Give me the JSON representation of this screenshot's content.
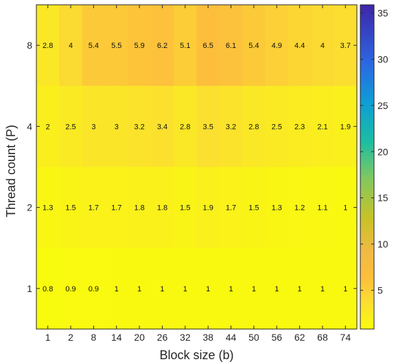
{
  "chart_data": {
    "type": "heatmap",
    "title": "",
    "xlabel": "Block size (b)",
    "ylabel": "Thread count (P)",
    "x_categories": [
      "1",
      "2",
      "8",
      "14",
      "20",
      "26",
      "32",
      "38",
      "44",
      "50",
      "56",
      "62",
      "68",
      "74"
    ],
    "y_categories": [
      "8",
      "4",
      "2",
      "1"
    ],
    "values": [
      [
        2.8,
        4,
        5.4,
        5.5,
        5.9,
        6.2,
        5.1,
        6.5,
        6.1,
        5.4,
        4.9,
        4.4,
        4,
        3.7
      ],
      [
        2,
        2.5,
        3,
        3,
        3.2,
        3.4,
        2.8,
        3.5,
        3.2,
        2.8,
        2.5,
        2.3,
        2.1,
        1.9
      ],
      [
        1.3,
        1.5,
        1.7,
        1.7,
        1.8,
        1.8,
        1.5,
        1.9,
        1.7,
        1.5,
        1.3,
        1.2,
        1.1,
        1
      ],
      [
        0.8,
        0.9,
        0.9,
        1,
        1,
        1,
        1,
        1,
        1,
        1,
        1,
        1,
        1,
        1
      ]
    ],
    "colorbar": {
      "colormap": "parula (reversed)",
      "range": [
        0.8,
        35.9
      ],
      "ticks": [
        5,
        10,
        15,
        20,
        25,
        30,
        35
      ]
    }
  }
}
